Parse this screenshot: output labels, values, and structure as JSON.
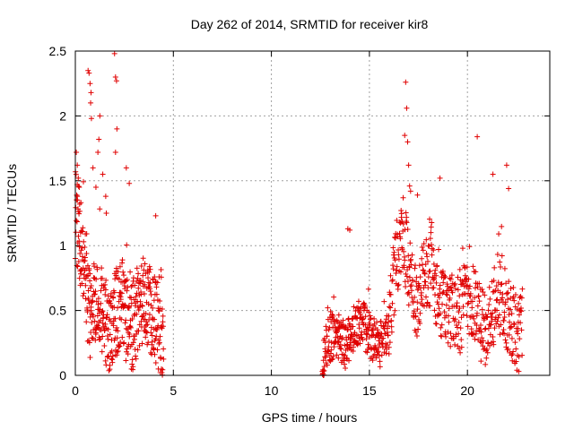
{
  "chart_data": {
    "type": "scatter",
    "title": "Day 262 of 2014, SRMTID for receiver kir8",
    "xlabel": "GPS time / hours",
    "ylabel": "SRMTID / TECUs",
    "xlim": [
      0,
      24.2
    ],
    "ylim": [
      0,
      2.5
    ],
    "x_ticks": [
      0,
      5,
      10,
      15,
      20
    ],
    "x_tick_labels": [
      "0",
      "5",
      "10",
      "15",
      "20"
    ],
    "y_ticks": [
      0,
      0.5,
      1,
      1.5,
      2,
      2.5
    ],
    "y_tick_labels": [
      "0",
      "0.5",
      "1",
      "1.5",
      "2",
      "2.5"
    ],
    "grid": true,
    "marker": "plus",
    "marker_color": "#e00000",
    "series": [
      {
        "name": "SRMTID",
        "segments": [
          {
            "x_start": 0.0,
            "x_end": 4.5,
            "count": 460,
            "base_values": [
              1.25,
              1.05,
              0.75,
              0.45,
              0.65,
              0.55,
              0.5,
              0.3,
              0.4,
              0.5,
              0.6,
              0.4,
              0.35,
              0.45,
              0.55,
              0.6,
              0.5,
              0.45,
              0.35,
              0.25
            ],
            "spread": 0.35
          },
          {
            "x_start": 12.6,
            "x_end": 16.0,
            "count": 300,
            "base_values": [
              0.05,
              0.25,
              0.3,
              0.32,
              0.28,
              0.22,
              0.3,
              0.38,
              0.42,
              0.36,
              0.3,
              0.26,
              0.22,
              0.3,
              0.32
            ],
            "spread": 0.18
          },
          {
            "x_start": 16.0,
            "x_end": 22.8,
            "count": 520,
            "base_values": [
              0.45,
              0.85,
              1.1,
              0.75,
              0.55,
              0.75,
              0.85,
              0.6,
              0.55,
              0.5,
              0.45,
              0.6,
              0.55,
              0.4,
              0.35,
              0.55,
              0.6,
              0.45,
              0.35,
              0.3
            ],
            "spread": 0.3
          }
        ],
        "points": [
          [
            0.05,
            1.72
          ],
          [
            0.1,
            1.62
          ],
          [
            0.15,
            1.52
          ],
          [
            0.2,
            1.45
          ],
          [
            0.22,
            1.32
          ],
          [
            0.1,
            1.38
          ],
          [
            0.65,
            2.35
          ],
          [
            0.7,
            2.33
          ],
          [
            0.75,
            2.25
          ],
          [
            0.8,
            2.18
          ],
          [
            0.78,
            2.1
          ],
          [
            0.82,
            1.98
          ],
          [
            0.9,
            1.6
          ],
          [
            1.15,
            1.72
          ],
          [
            1.2,
            1.82
          ],
          [
            1.25,
            2.0
          ],
          [
            1.05,
            1.45
          ],
          [
            1.4,
            1.55
          ],
          [
            1.55,
            1.38
          ],
          [
            1.58,
            1.25
          ],
          [
            2.0,
            2.48
          ],
          [
            2.05,
            2.3
          ],
          [
            2.1,
            2.27
          ],
          [
            2.12,
            1.9
          ],
          [
            2.05,
            1.72
          ],
          [
            2.6,
            1.6
          ],
          [
            2.75,
            1.48
          ],
          [
            4.1,
            1.23
          ],
          [
            12.65,
            0.0
          ],
          [
            13.9,
            1.13
          ],
          [
            14.0,
            1.12
          ],
          [
            16.85,
            2.26
          ],
          [
            16.9,
            2.06
          ],
          [
            16.8,
            1.85
          ],
          [
            16.95,
            1.8
          ],
          [
            17.0,
            1.62
          ],
          [
            17.05,
            1.46
          ],
          [
            17.1,
            1.42
          ],
          [
            17.45,
            1.39
          ],
          [
            18.6,
            1.52
          ],
          [
            20.5,
            1.84
          ],
          [
            21.3,
            1.55
          ],
          [
            22.0,
            1.62
          ],
          [
            22.1,
            1.44
          ]
        ]
      }
    ]
  }
}
